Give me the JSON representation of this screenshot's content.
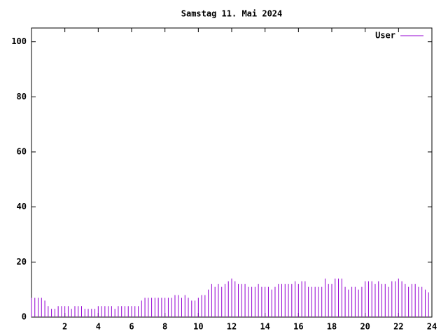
{
  "chart_data": {
    "type": "impulses",
    "title": "Samstag 11. Mai 2024",
    "x": [
      0,
      0.2,
      0.4,
      0.6,
      0.8,
      1,
      1.2,
      1.4,
      1.6,
      1.8,
      2,
      2.2,
      2.4,
      2.6,
      2.8,
      3,
      3.2,
      3.4,
      3.6,
      3.8,
      4,
      4.2,
      4.4,
      4.6,
      4.8,
      5,
      5.2,
      5.4,
      5.6,
      5.8,
      6,
      6.2,
      6.4,
      6.6,
      6.8,
      7,
      7.2,
      7.4,
      7.6,
      7.8,
      8,
      8.2,
      8.4,
      8.6,
      8.8,
      9,
      9.2,
      9.4,
      9.6,
      9.8,
      10,
      10.2,
      10.4,
      10.6,
      10.8,
      11,
      11.2,
      11.4,
      11.6,
      11.8,
      12,
      12.2,
      12.4,
      12.6,
      12.8,
      13,
      13.2,
      13.4,
      13.6,
      13.8,
      14,
      14.2,
      14.4,
      14.6,
      14.8,
      15,
      15.2,
      15.4,
      15.6,
      15.8,
      16,
      16.2,
      16.4,
      16.6,
      16.8,
      17,
      17.2,
      17.4,
      17.6,
      17.8,
      18,
      18.2,
      18.4,
      18.6,
      18.8,
      19,
      19.2,
      19.4,
      19.6,
      19.8,
      20,
      20.2,
      20.4,
      20.6,
      20.8,
      21,
      21.2,
      21.4,
      21.6,
      21.8,
      22,
      22.2,
      22.4,
      22.6,
      22.8,
      23,
      23.2,
      23.4,
      23.6,
      23.8
    ],
    "series": [
      {
        "name": "User",
        "color": "#9400d3",
        "values": [
          7,
          7,
          7,
          7,
          6,
          4,
          3,
          3,
          4,
          4,
          4,
          4,
          3,
          4,
          4,
          4,
          3,
          3,
          3,
          3,
          4,
          4,
          4,
          4,
          4,
          3,
          4,
          4,
          4,
          4,
          4,
          4,
          4,
          6,
          7,
          7,
          7,
          7,
          7,
          7,
          7,
          7,
          7,
          8,
          8,
          7,
          8,
          7,
          6,
          6,
          7,
          8,
          8,
          10,
          12,
          11,
          12,
          11,
          12,
          13,
          14,
          13,
          12,
          12,
          12,
          11,
          11,
          11,
          12,
          11,
          11,
          11,
          10,
          11,
          12,
          12,
          12,
          12,
          12,
          13,
          12,
          13,
          13,
          11,
          11,
          11,
          11,
          11,
          14,
          12,
          12,
          14,
          14,
          14,
          11,
          10,
          11,
          11,
          10,
          11,
          13,
          13,
          13,
          12,
          13,
          12,
          12,
          11,
          13,
          13,
          14,
          13,
          12,
          11,
          12,
          12,
          11,
          11,
          10,
          9
        ]
      }
    ],
    "xlim": [
      0,
      24
    ],
    "xticks": [
      2,
      4,
      6,
      8,
      10,
      12,
      14,
      16,
      18,
      20,
      22,
      24
    ],
    "ylim": [
      0,
      105
    ],
    "yticks": [
      0,
      20,
      40,
      60,
      80,
      100
    ],
    "legend": "top-right"
  }
}
